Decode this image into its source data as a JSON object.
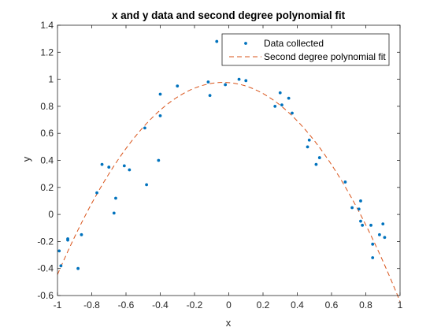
{
  "chart_data": {
    "type": "scatter",
    "title": "x and y data and second degree polynomial fit",
    "xlabel": "x",
    "ylabel": "y",
    "xlim": [
      -1,
      1
    ],
    "ylim": [
      -0.6,
      1.4
    ],
    "xticks": [
      -1,
      -0.8,
      -0.6,
      -0.4,
      -0.2,
      0,
      0.2,
      0.4,
      0.6,
      0.8,
      1
    ],
    "xtick_labels": [
      "-1",
      "-0.8",
      "-0.6",
      "-0.4",
      "-0.2",
      "0",
      "0.2",
      "0.4",
      "0.6",
      "0.8",
      "1"
    ],
    "yticks": [
      -0.6,
      -0.4,
      -0.2,
      0,
      0.2,
      0.4,
      0.6,
      0.8,
      1,
      1.2,
      1.4
    ],
    "ytick_labels": [
      "-0.6",
      "-0.4",
      "-0.2",
      "0",
      "0.2",
      "0.4",
      "0.6",
      "0.8",
      "1",
      "1.2",
      "1.4"
    ],
    "grid": false,
    "legend_position": "top-right",
    "series": [
      {
        "name": "Data collected",
        "type": "scatter",
        "color": "#0072BD",
        "x": [
          -0.99,
          -0.98,
          -0.94,
          -0.94,
          -0.88,
          -0.86,
          -0.77,
          -0.74,
          -0.7,
          -0.67,
          -0.66,
          -0.61,
          -0.58,
          -0.49,
          -0.48,
          -0.41,
          -0.4,
          -0.4,
          -0.3,
          -0.12,
          -0.11,
          -0.02,
          -0.07,
          0.06,
          0.1,
          0.27,
          0.3,
          0.31,
          0.35,
          0.37,
          0.46,
          0.47,
          0.51,
          0.53,
          0.68,
          0.72,
          0.76,
          0.77,
          0.77,
          0.78,
          0.83,
          0.84,
          0.84,
          0.88,
          0.9,
          0.91
        ],
        "y": [
          -0.27,
          -0.38,
          -0.18,
          -0.19,
          -0.4,
          -0.15,
          0.16,
          0.37,
          0.35,
          0.01,
          0.12,
          0.36,
          0.33,
          0.64,
          0.22,
          0.4,
          0.73,
          0.89,
          0.95,
          0.98,
          0.88,
          0.96,
          1.28,
          1.0,
          0.99,
          0.8,
          0.9,
          0.81,
          0.86,
          0.75,
          0.5,
          0.55,
          0.37,
          0.42,
          0.24,
          0.05,
          0.04,
          -0.05,
          0.1,
          -0.08,
          -0.08,
          -0.32,
          -0.22,
          -0.15,
          -0.07,
          -0.17
        ]
      },
      {
        "name": "Second degree polynomial fit",
        "type": "line",
        "style": "dashed",
        "color": "#D95319",
        "coefficients": {
          "a": -1.52,
          "b": -0.1,
          "c": 0.975
        }
      }
    ]
  }
}
